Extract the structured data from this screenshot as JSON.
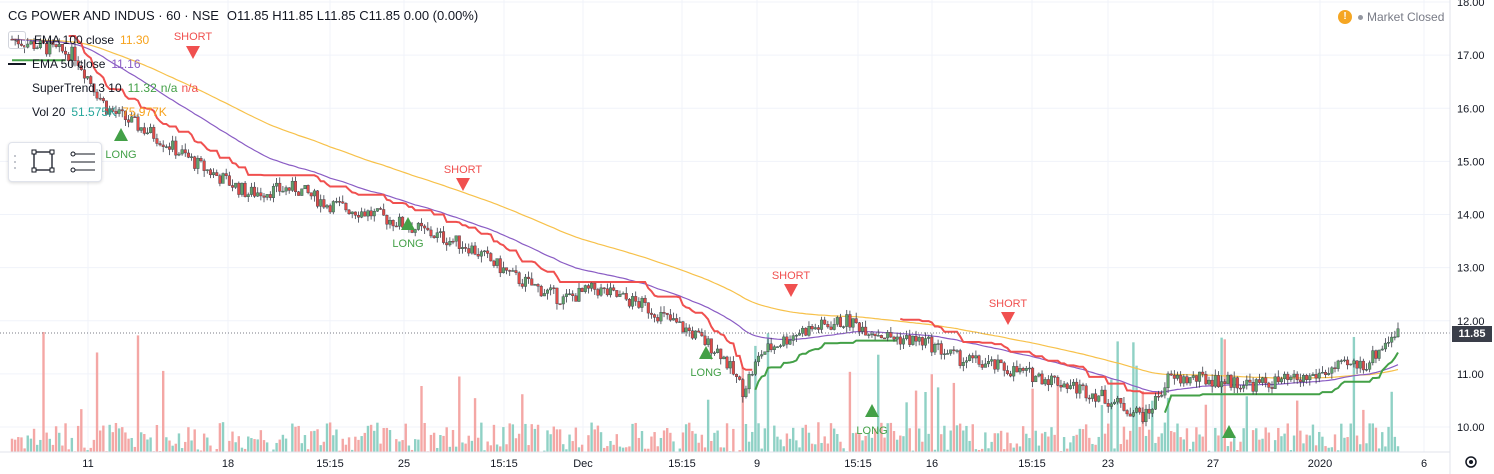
{
  "header": {
    "title": "CG POWER AND INDUS · 60 · NSE",
    "ohlc": "O11.85  H11.85  L11.85  C11.85  0.00 (0.00%)"
  },
  "legend": {
    "ema100": {
      "label": "EMA 100 close",
      "value": "11.30"
    },
    "ema50": {
      "label": "EMA 50 close",
      "value": "11.16"
    },
    "supertrend": {
      "label": "SuperTrend 3 10",
      "value": "11.32",
      "v2": "n/a",
      "v3": "n/a"
    },
    "vol": {
      "label": "Vol 20",
      "value": "51.575K",
      "v2": "75.977K"
    }
  },
  "market_status": "Market Closed",
  "market_icon": "exclamation-icon",
  "current_price": "11.85",
  "colors": {
    "up": "#26a69a",
    "down": "#ef5350",
    "up_candle": "#5fa36a",
    "down_candle": "#e04b48",
    "ema100": "#f7c14a",
    "ema50": "#8a5cc4",
    "st_up": "#43a047",
    "st_down": "#f0504f",
    "vol_up": "#8fd1c5",
    "vol_down": "#f4a7a5"
  },
  "chart_data": {
    "type": "candlestick",
    "ylim": [
      9.85,
      18.0
    ],
    "y_ticks": [
      "10.00",
      "11.00",
      "12.00",
      "13.00",
      "14.00",
      "15.00",
      "16.00",
      "17.00",
      "18.00"
    ],
    "x_ticks": [
      "11",
      "18",
      "15:15",
      "25",
      "15:15",
      "Dec",
      "15:15",
      "9",
      "15:15",
      "16",
      "15:15",
      "23",
      "27",
      "2020",
      "6"
    ],
    "signals": [
      {
        "type": "SHORT"
      },
      {
        "type": "LONG"
      },
      {
        "type": "SHORT"
      },
      {
        "type": "LONG"
      },
      {
        "type": "SHORT"
      },
      {
        "type": "LONG"
      },
      {
        "type": "SHORT"
      },
      {
        "type": "LONG"
      }
    ],
    "trend_anchors": [
      [
        0,
        17.3
      ],
      [
        20,
        17.0
      ],
      [
        30,
        16.0
      ],
      [
        45,
        15.5
      ],
      [
        60,
        14.9
      ],
      [
        75,
        14.4
      ],
      [
        90,
        14.5
      ],
      [
        100,
        14.2
      ],
      [
        115,
        14.0
      ],
      [
        130,
        13.7
      ],
      [
        145,
        13.4
      ],
      [
        160,
        12.8
      ],
      [
        175,
        12.4
      ],
      [
        185,
        12.6
      ],
      [
        200,
        12.3
      ],
      [
        215,
        11.8
      ],
      [
        225,
        11.4
      ],
      [
        232,
        10.7
      ],
      [
        238,
        11.4
      ],
      [
        250,
        11.8
      ],
      [
        265,
        12.0
      ],
      [
        278,
        11.7
      ],
      [
        290,
        11.6
      ],
      [
        300,
        11.3
      ],
      [
        315,
        11.1
      ],
      [
        330,
        10.9
      ],
      [
        345,
        10.6
      ],
      [
        352,
        10.4
      ],
      [
        360,
        10.2
      ],
      [
        367,
        10.9
      ],
      [
        380,
        10.9
      ],
      [
        395,
        10.8
      ],
      [
        410,
        10.9
      ],
      [
        420,
        11.1
      ],
      [
        430,
        11.2
      ],
      [
        440,
        11.85
      ]
    ]
  }
}
